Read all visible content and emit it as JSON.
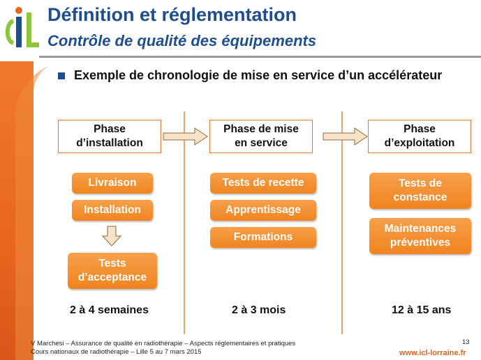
{
  "header": {
    "title": "Définition et réglementation",
    "subtitle": "Contrôle de qualité des équipements"
  },
  "bullet": {
    "text": "Exemple de chronologie de mise en service d’un accélérateur"
  },
  "phases": [
    "Phase\nd’installation",
    "Phase de mise\nen service",
    "Phase\nd’exploitation"
  ],
  "columns": {
    "installation": {
      "items": [
        "Livraison",
        "Installation"
      ],
      "result": "Tests\nd’acceptance",
      "duration": "2 à 4 semaines"
    },
    "mise_en_service": {
      "items": [
        "Tests de recette",
        "Apprentissage",
        "Formations"
      ],
      "duration": "2 à 3 mois"
    },
    "exploitation": {
      "items": [
        "Tests de\nconstance",
        "Maintenances\npréventives"
      ],
      "duration": "12 à 15 ans"
    }
  },
  "footer": {
    "line1": "V Marchesi – Assurance de qualité en radiothérapie – Aspects réglementaires et pratiques",
    "line2": "Cours nationaux de radiothérapie – Lille 5 au 7 mars 2015",
    "page_number": "13",
    "website": "www.icl-lorraine.fr"
  },
  "colors": {
    "brand_blue": "#1f4e8c",
    "brand_orange": "#f08420",
    "logo_green": "#8cc63f"
  },
  "icons": [
    "icl-logo",
    "bullet-square-icon",
    "arrow-right-icon",
    "arrow-down-icon"
  ]
}
